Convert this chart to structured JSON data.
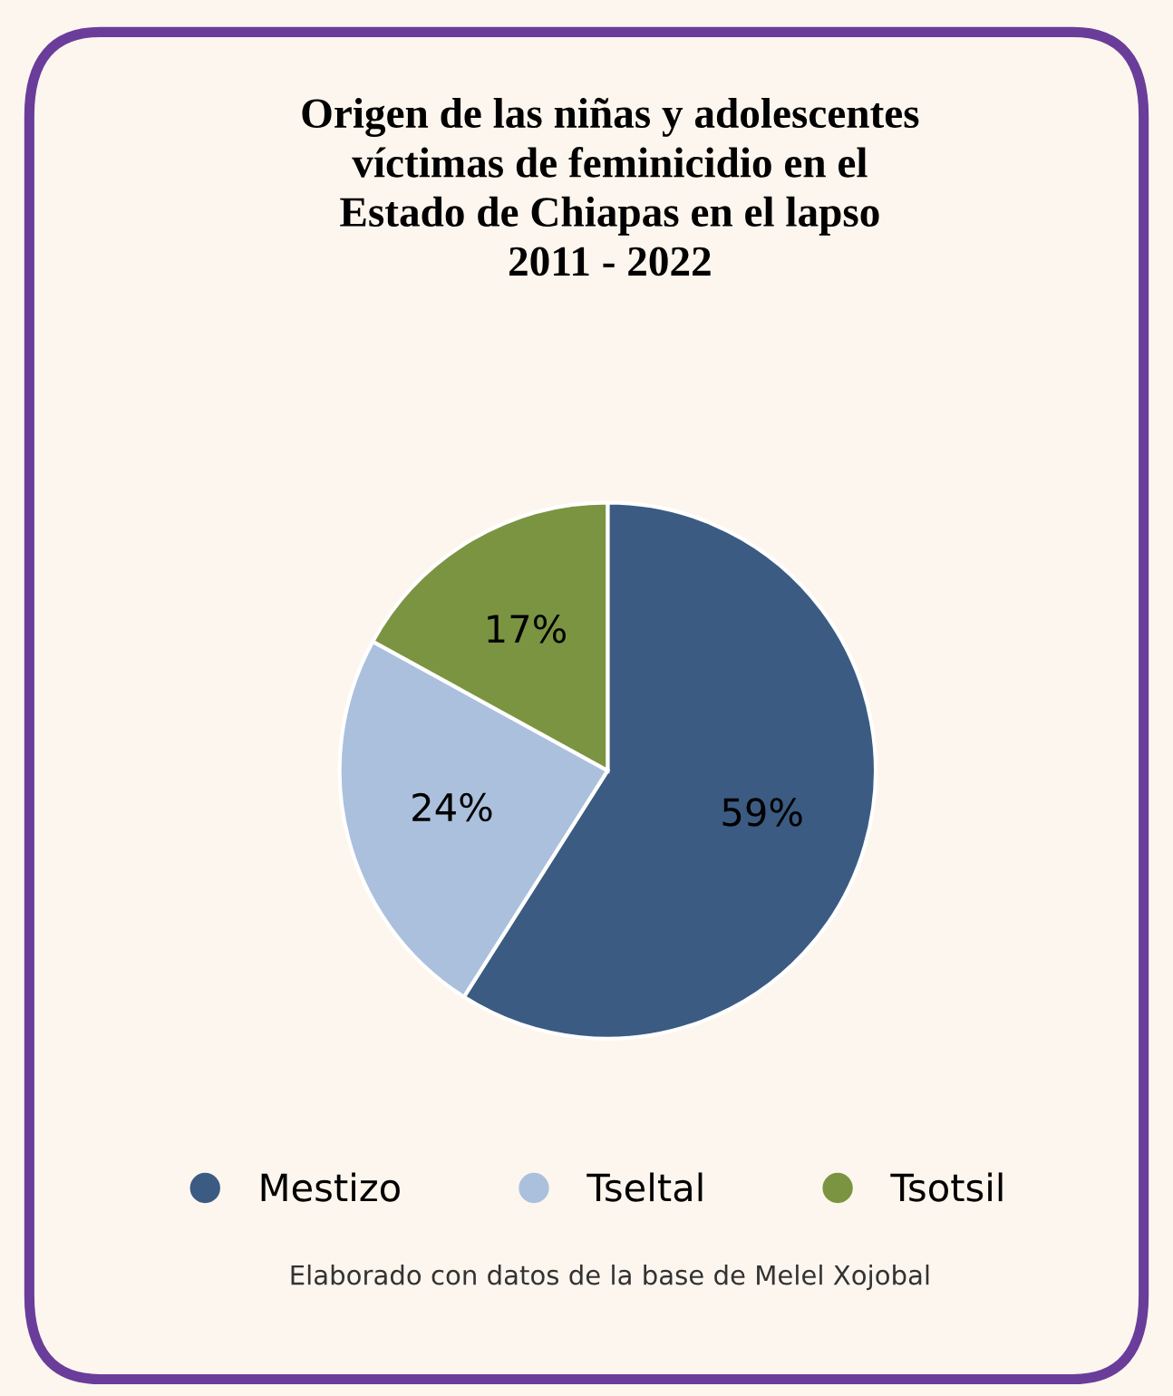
{
  "chart_data": {
    "type": "pie",
    "title": "Origen de las niñas y adolescentes víctimas de feminicidio en el Estado de Chiapas en el lapso 2011 - 2022",
    "categories": [
      "Mestizo",
      "Tseltal",
      "Tsotsil"
    ],
    "values": [
      59,
      24,
      17
    ],
    "value_labels": [
      "59%",
      "24%",
      "17%"
    ],
    "colors": [
      "#3b5b82",
      "#abc0dc",
      "#7b9441"
    ],
    "legend": "bottom",
    "annotations": [
      "Elaborado con datos de la base de Melel Xojobal"
    ]
  }
}
